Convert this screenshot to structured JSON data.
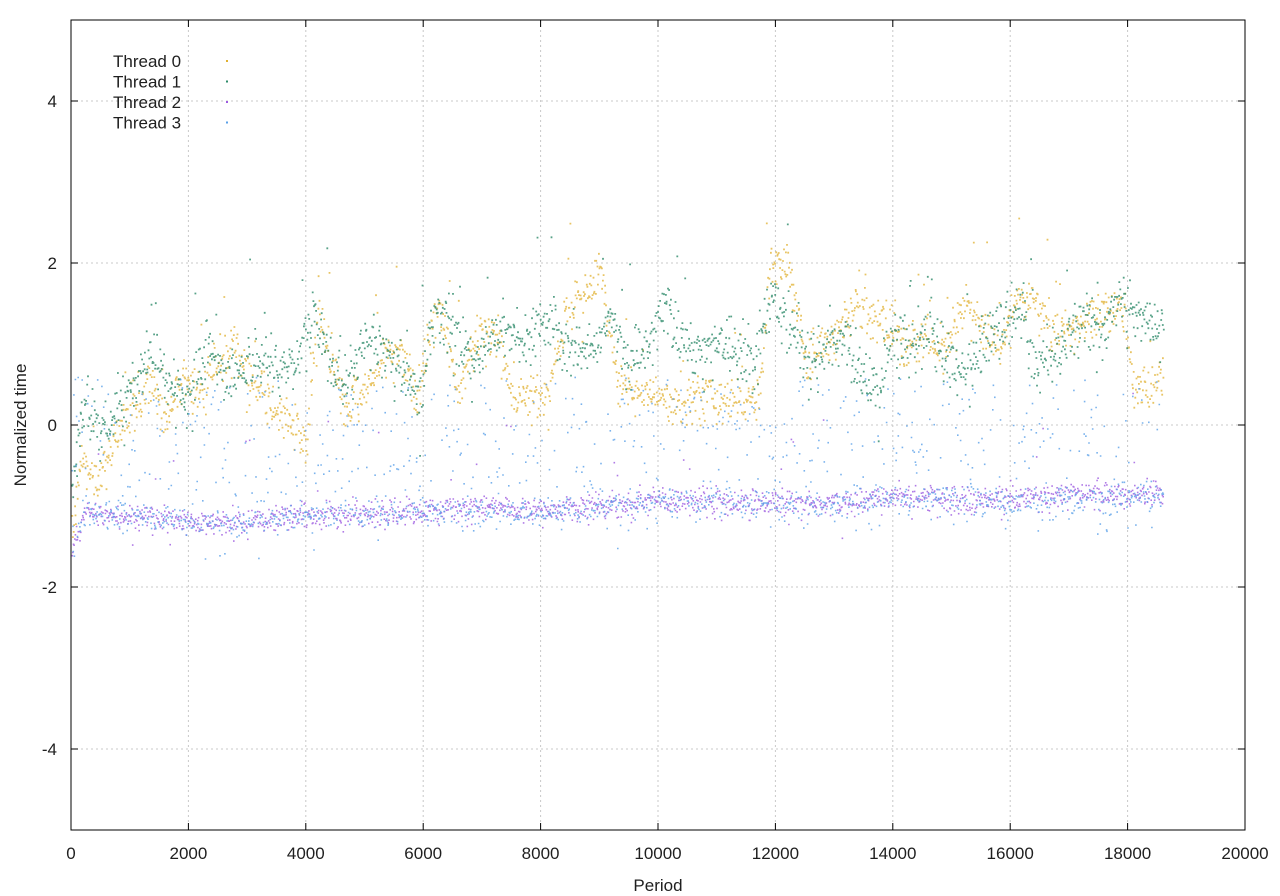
{
  "chart_data": {
    "type": "scatter",
    "title": "",
    "xlabel": "Period",
    "ylabel": "Normalized time",
    "xlim": [
      0,
      20000
    ],
    "ylim": [
      -5,
      5
    ],
    "xticks": [
      0,
      2000,
      4000,
      6000,
      8000,
      10000,
      12000,
      14000,
      16000,
      18000,
      20000
    ],
    "yticks": [
      -4,
      -2,
      0,
      2,
      4
    ],
    "grid": true,
    "legend_position": "top-left",
    "point_count_per_series": 18600,
    "series": [
      {
        "name": "Thread 0",
        "color": "#e0b030",
        "band_x": [
          0,
          150,
          400,
          700,
          1000,
          1300,
          1600,
          1900,
          2200,
          2500,
          2800,
          3100,
          3400,
          3700,
          4000,
          4200,
          4400,
          4700,
          5000,
          5300,
          5600,
          5900,
          6100,
          6300,
          6600,
          6900,
          7200,
          7500,
          7800,
          8100,
          8400,
          8700,
          9000,
          9300,
          9600,
          9900,
          10200,
          10500,
          10800,
          11100,
          11400,
          11700,
          11900,
          12200,
          12500,
          12800,
          13100,
          13400,
          13700,
          14000,
          14300,
          14600,
          14900,
          15200,
          15500,
          15800,
          16100,
          16400,
          16700,
          17000,
          17300,
          17600,
          17900,
          18100,
          18400,
          18600
        ],
        "band_y": [
          -1.5,
          -0.4,
          -0.7,
          -0.2,
          0.2,
          0.5,
          0.1,
          0.6,
          0.4,
          0.8,
          0.9,
          0.5,
          0.3,
          0.0,
          -0.2,
          1.5,
          0.8,
          0.2,
          0.5,
          0.8,
          1.0,
          0.3,
          1.2,
          1.4,
          0.4,
          1.1,
          1.2,
          0.3,
          0.4,
          0.3,
          1.3,
          1.6,
          1.9,
          0.5,
          0.5,
          0.4,
          0.3,
          0.3,
          0.4,
          0.3,
          0.3,
          0.3,
          2.0,
          2.0,
          0.8,
          1.0,
          1.2,
          1.5,
          1.3,
          1.2,
          1.0,
          1.0,
          0.9,
          1.5,
          1.2,
          1.0,
          1.6,
          1.5,
          1.1,
          1.2,
          1.3,
          1.4,
          1.5,
          0.4,
          0.5,
          0.7
        ],
        "spread": 0.14,
        "outlier_rate": 0.05
      },
      {
        "name": "Thread 1",
        "color": "#2e8b6a",
        "band_x": [
          0,
          200,
          500,
          800,
          1100,
          1400,
          1700,
          2000,
          2300,
          2600,
          2900,
          3200,
          3500,
          3800,
          4100,
          4400,
          4700,
          5000,
          5300,
          5600,
          5900,
          6200,
          6500,
          6800,
          7100,
          7400,
          7700,
          8000,
          8300,
          8600,
          8900,
          9200,
          9500,
          9800,
          10100,
          10400,
          10700,
          11000,
          11300,
          11600,
          11900,
          12200,
          12500,
          12800,
          13100,
          13400,
          13700,
          14000,
          14300,
          14600,
          14900,
          15200,
          15500,
          15800,
          16100,
          16400,
          16700,
          17000,
          17300,
          17600,
          17900,
          18200,
          18600
        ],
        "band_y": [
          -0.9,
          0.3,
          -0.1,
          0.2,
          0.5,
          0.9,
          0.5,
          0.3,
          1.0,
          0.6,
          0.7,
          0.9,
          0.6,
          0.7,
          1.4,
          0.8,
          0.5,
          1.1,
          1.0,
          0.7,
          0.4,
          1.4,
          1.2,
          0.8,
          1.0,
          1.2,
          1.0,
          1.3,
          1.1,
          0.9,
          1.0,
          1.3,
          0.8,
          1.0,
          1.5,
          1.0,
          0.9,
          1.1,
          0.9,
          0.8,
          1.6,
          1.3,
          0.8,
          0.9,
          1.1,
          0.7,
          0.3,
          1.1,
          1.0,
          1.2,
          0.8,
          0.6,
          1.0,
          1.3,
          1.5,
          0.8,
          0.9,
          1.1,
          1.4,
          1.2,
          1.6,
          1.3,
          1.2
        ],
        "spread": 0.18,
        "outlier_rate": 0.04
      },
      {
        "name": "Thread 2",
        "color": "#9c5ae0",
        "band_x": [
          0,
          200,
          1000,
          2000,
          3000,
          4000,
          5000,
          6000,
          7000,
          8000,
          9000,
          10000,
          11000,
          12000,
          13000,
          14000,
          15000,
          16000,
          17000,
          18000,
          18600
        ],
        "band_y": [
          -1.6,
          -1.1,
          -1.1,
          -1.2,
          -1.2,
          -1.1,
          -1.1,
          -1.05,
          -1.0,
          -1.05,
          -1.0,
          -0.9,
          -0.95,
          -0.95,
          -0.95,
          -0.9,
          -0.9,
          -0.9,
          -0.85,
          -0.85,
          -0.8
        ],
        "spread": 0.08,
        "outlier_rate": 0.03
      },
      {
        "name": "Thread 3",
        "color": "#5aa0e8",
        "band_x": [
          0,
          200,
          1000,
          2000,
          3000,
          4000,
          5000,
          6000,
          7000,
          8000,
          9000,
          10000,
          11000,
          12000,
          13000,
          14000,
          15000,
          16000,
          17000,
          18000,
          18600
        ],
        "band_y": [
          -1.6,
          -1.1,
          -1.1,
          -1.2,
          -1.2,
          -1.1,
          -1.1,
          -1.05,
          -1.05,
          -1.05,
          -1.0,
          -0.9,
          -0.95,
          -0.95,
          -0.95,
          -0.9,
          -0.9,
          -0.95,
          -0.9,
          -0.9,
          -0.85
        ],
        "spread": 0.08,
        "outlier_rate": 0.06,
        "scatter_band": [
          -1.3,
          0.6
        ]
      }
    ]
  }
}
